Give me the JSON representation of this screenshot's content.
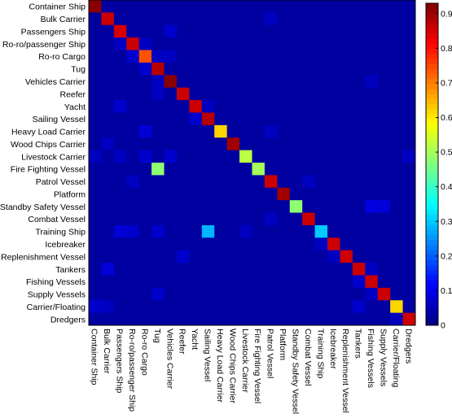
{
  "chart_data": {
    "type": "heatmap",
    "title": "",
    "xlabel": "",
    "ylabel": "",
    "categories": [
      "Container Ship",
      "Bulk Carrier",
      "Passengers Ship",
      "Ro-ro/passenger Ship",
      "Ro-ro Cargo",
      "Tug",
      "Vehicles Carrier",
      "Reefer",
      "Yacht",
      "Sailing Vessel",
      "Heavy Load Carrier",
      "Wood Chips Carrier",
      "Livestock Carrier",
      "Fire Fighting Vessel",
      "Patrol Vessel",
      "Platform",
      "Standby Safety Vessel",
      "Combat Vessel",
      "Training Ship",
      "Icebreaker",
      "Replenishment Vessel",
      "Tankers",
      "Fishing Vessels",
      "Supply Vessels",
      "Carrier/Floating",
      "Dredgers"
    ],
    "diagonal": [
      0.92,
      0.86,
      0.85,
      0.86,
      0.74,
      0.88,
      0.92,
      0.86,
      0.86,
      0.88,
      0.62,
      0.9,
      0.52,
      0.5,
      0.86,
      0.9,
      0.48,
      0.86,
      0.3,
      0.86,
      0.86,
      0.86,
      0.86,
      0.86,
      0.62,
      0.86
    ],
    "off_diagonal": [
      {
        "row": 1,
        "col": 14,
        "value": 0.06
      },
      {
        "row": 2,
        "col": 6,
        "value": 0.07
      },
      {
        "row": 3,
        "col": 2,
        "value": 0.06
      },
      {
        "row": 3,
        "col": 4,
        "value": 0.06
      },
      {
        "row": 4,
        "col": 3,
        "value": 0.07
      },
      {
        "row": 4,
        "col": 5,
        "value": 0.06
      },
      {
        "row": 4,
        "col": 6,
        "value": 0.06
      },
      {
        "row": 5,
        "col": 4,
        "value": 0.07
      },
      {
        "row": 6,
        "col": 5,
        "value": 0.06
      },
      {
        "row": 6,
        "col": 22,
        "value": 0.06
      },
      {
        "row": 7,
        "col": 5,
        "value": 0.06
      },
      {
        "row": 8,
        "col": 2,
        "value": 0.07
      },
      {
        "row": 8,
        "col": 9,
        "value": 0.06
      },
      {
        "row": 9,
        "col": 8,
        "value": 0.07
      },
      {
        "row": 10,
        "col": 4,
        "value": 0.08
      },
      {
        "row": 10,
        "col": 14,
        "value": 0.06
      },
      {
        "row": 11,
        "col": 1,
        "value": 0.06
      },
      {
        "row": 12,
        "col": 0,
        "value": 0.06
      },
      {
        "row": 12,
        "col": 2,
        "value": 0.06
      },
      {
        "row": 12,
        "col": 4,
        "value": 0.07
      },
      {
        "row": 12,
        "col": 6,
        "value": 0.07
      },
      {
        "row": 12,
        "col": 25,
        "value": 0.06
      },
      {
        "row": 13,
        "col": 5,
        "value": 0.48
      },
      {
        "row": 14,
        "col": 3,
        "value": 0.06
      },
      {
        "row": 14,
        "col": 17,
        "value": 0.06
      },
      {
        "row": 16,
        "col": 22,
        "value": 0.09
      },
      {
        "row": 16,
        "col": 23,
        "value": 0.08
      },
      {
        "row": 17,
        "col": 14,
        "value": 0.06
      },
      {
        "row": 18,
        "col": 2,
        "value": 0.08
      },
      {
        "row": 18,
        "col": 3,
        "value": 0.07
      },
      {
        "row": 18,
        "col": 5,
        "value": 0.07
      },
      {
        "row": 18,
        "col": 9,
        "value": 0.28
      },
      {
        "row": 18,
        "col": 12,
        "value": 0.06
      },
      {
        "row": 19,
        "col": 18,
        "value": 0.06
      },
      {
        "row": 20,
        "col": 7,
        "value": 0.07
      },
      {
        "row": 20,
        "col": 19,
        "value": 0.06
      },
      {
        "row": 21,
        "col": 1,
        "value": 0.08
      },
      {
        "row": 21,
        "col": 22,
        "value": 0.06
      },
      {
        "row": 22,
        "col": 21,
        "value": 0.07
      },
      {
        "row": 23,
        "col": 5,
        "value": 0.07
      },
      {
        "row": 23,
        "col": 22,
        "value": 0.06
      },
      {
        "row": 24,
        "col": 0,
        "value": 0.07
      },
      {
        "row": 24,
        "col": 1,
        "value": 0.06
      },
      {
        "row": 24,
        "col": 21,
        "value": 0.07
      },
      {
        "row": 25,
        "col": 24,
        "value": 0.06
      }
    ],
    "background_value": 0.03,
    "colorbar": {
      "ticks": [
        "0",
        "0.1",
        "0.2",
        "0.3",
        "0.4",
        "0.5",
        "0.6",
        "0.7",
        "0.8",
        "0.9"
      ],
      "range": [
        0,
        0.93
      ],
      "colormap": "jet",
      "placement": "right"
    },
    "grid": false
  }
}
